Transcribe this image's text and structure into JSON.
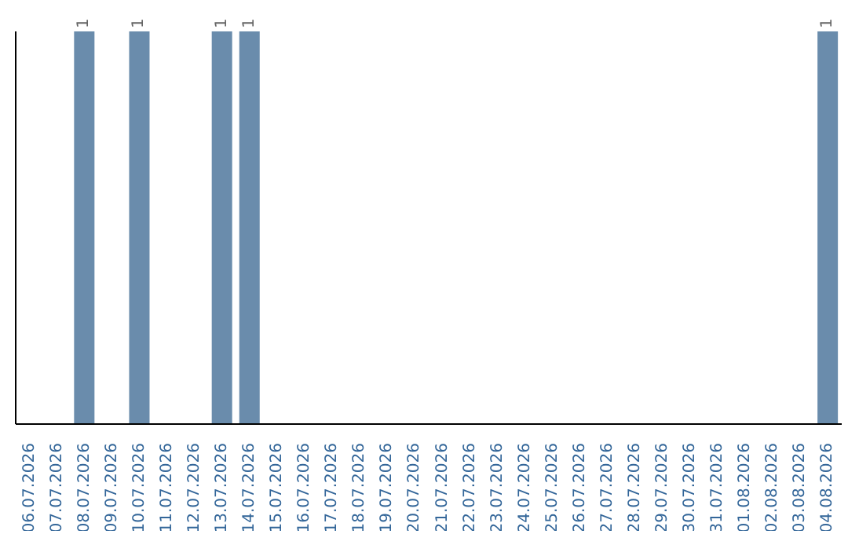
{
  "chart_data": {
    "type": "bar",
    "categories": [
      "06.07.2026",
      "07.07.2026",
      "08.07.2026",
      "09.07.2026",
      "10.07.2026",
      "11.07.2026",
      "12.07.2026",
      "13.07.2026",
      "14.07.2026",
      "15.07.2026",
      "16.07.2026",
      "17.07.2026",
      "18.07.2026",
      "19.07.2026",
      "20.07.2026",
      "21.07.2026",
      "22.07.2026",
      "23.07.2026",
      "24.07.2026",
      "25.07.2026",
      "26.07.2026",
      "27.07.2026",
      "28.07.2026",
      "29.07.2026",
      "30.07.2026",
      "31.07.2026",
      "01.08.2026",
      "02.08.2026",
      "03.08.2026",
      "04.08.2026"
    ],
    "values": [
      0,
      0,
      1,
      0,
      1,
      0,
      0,
      1,
      1,
      0,
      0,
      0,
      0,
      0,
      0,
      0,
      0,
      0,
      0,
      0,
      0,
      0,
      0,
      0,
      0,
      0,
      0,
      0,
      0,
      1
    ],
    "value_labels": [
      null,
      null,
      "1",
      null,
      "1",
      null,
      null,
      "1",
      "1",
      null,
      null,
      null,
      null,
      null,
      null,
      null,
      null,
      null,
      null,
      null,
      null,
      null,
      null,
      null,
      null,
      null,
      null,
      null,
      null,
      "1"
    ],
    "color": "#6a8cac",
    "grid": false,
    "legend": false
  }
}
